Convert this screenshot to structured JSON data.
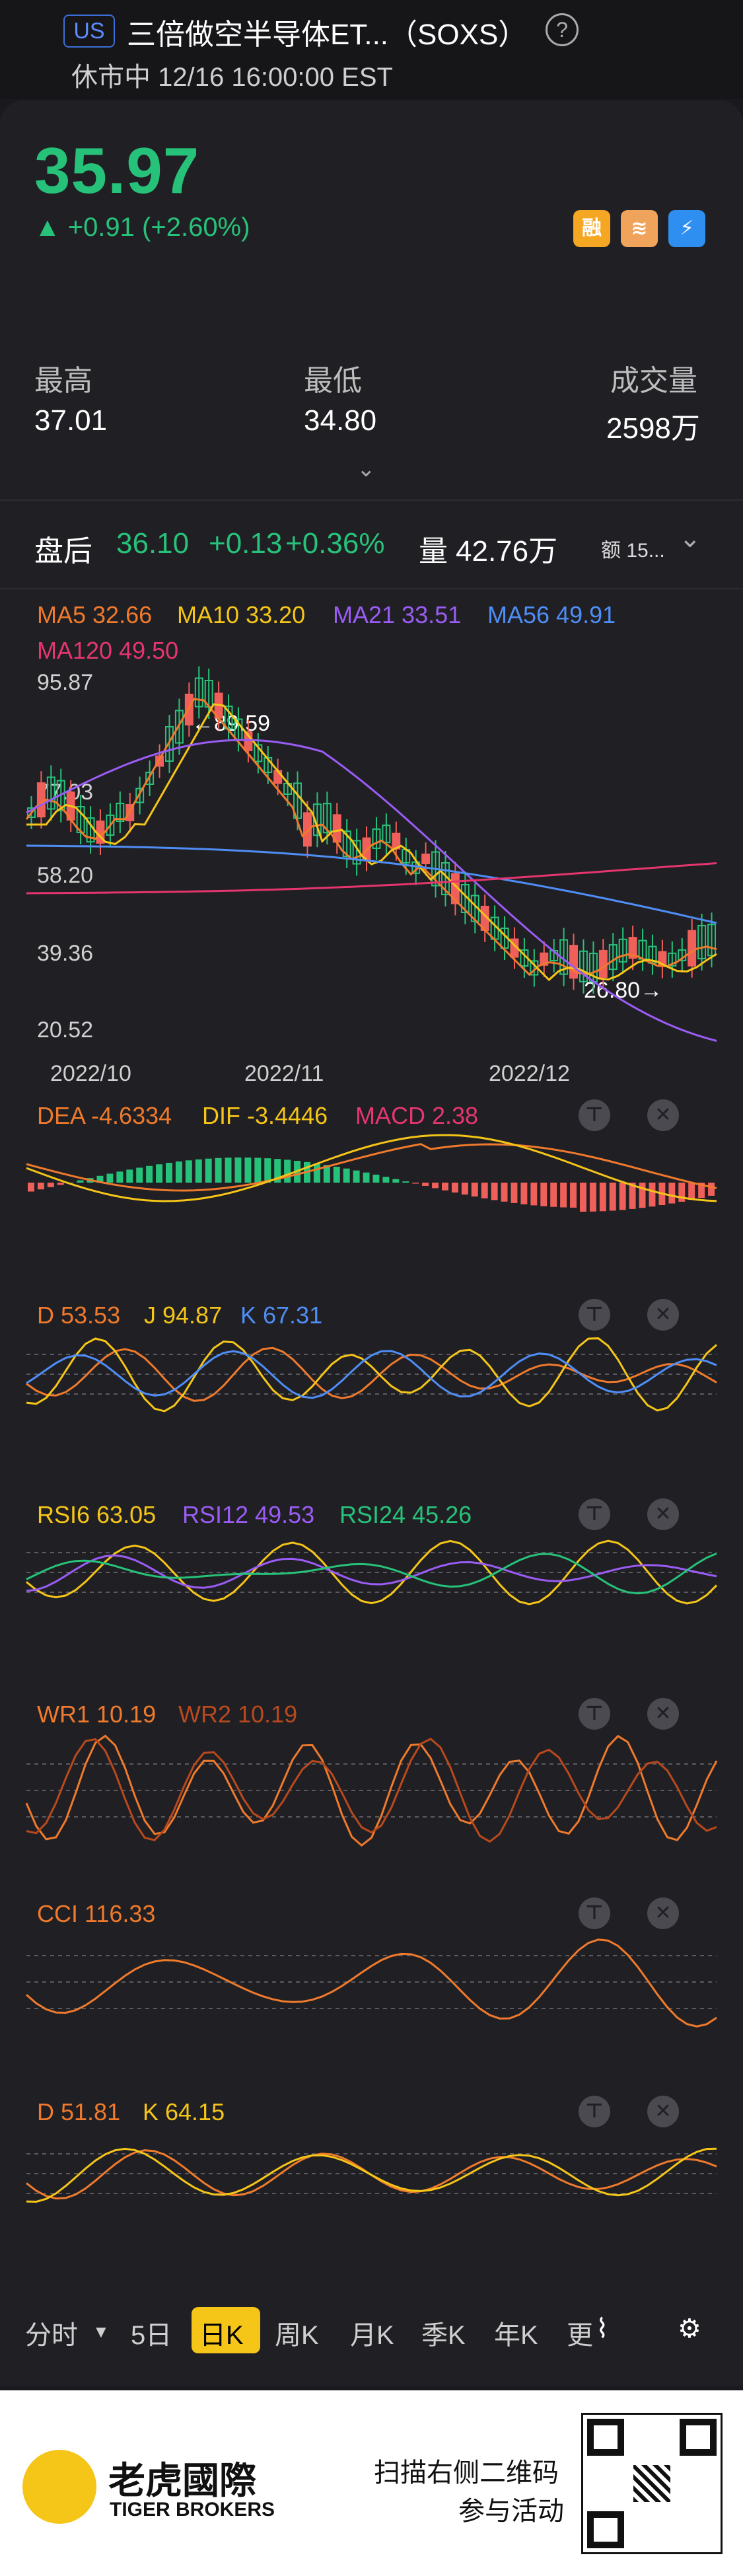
{
  "header": {
    "market": "US",
    "title": "三倍做空半导体ET...（SOXS）",
    "help": "?",
    "status": "休市中 12/16 16:00:00 EST"
  },
  "quote": {
    "price": "35.97",
    "change": "+0.91 (+2.60%)",
    "badges": [
      "融",
      "",
      "⚡"
    ]
  },
  "stats": {
    "high_label": "最高",
    "high": "37.01",
    "low_label": "最低",
    "low": "34.80",
    "vol_label": "成交量",
    "vol": "2598万"
  },
  "after_hours": {
    "label": "盘后",
    "price": "36.10",
    "change": "+0.13",
    "pct": "+0.36%",
    "vol_label": "量",
    "vol": "42.76万",
    "amt_label": "额",
    "amt": "15..."
  },
  "ma": {
    "ma5": "MA5 32.66",
    "ma10": "MA10 33.20",
    "ma21": "MA21 33.51",
    "ma56": "MA56 49.91",
    "ma120": "MA120 49.50"
  },
  "axis": {
    "y": [
      "95.87",
      "77.03",
      "58.20",
      "39.36",
      "20.52"
    ],
    "x": [
      "2022/10",
      "2022/11",
      "2022/12"
    ],
    "high_mark": "89.59",
    "low_mark": "26.80"
  },
  "macd": {
    "dea": "DEA -4.6334",
    "dif": "DIF -3.4446",
    "macd": "MACD 2.38"
  },
  "kdj": {
    "d": "D 53.53",
    "j": "J 94.87",
    "k": "K 67.31"
  },
  "rsi": {
    "r6": "RSI6 63.05",
    "r12": "RSI12 49.53",
    "r24": "RSI24 45.26"
  },
  "wr": {
    "w1": "WR1 10.19",
    "w2": "WR2 10.19"
  },
  "cci": {
    "c": "CCI 116.33"
  },
  "stoch": {
    "d": "D 51.81",
    "k": "K 64.15"
  },
  "tabs": [
    "分时",
    "5日",
    "日K",
    "周K",
    "月K",
    "季K",
    "年K",
    "更"
  ],
  "footer": {
    "brand_cn": "老虎國際",
    "brand_en": "TIGER BROKERS",
    "promo1": "扫描右侧二维码",
    "promo2": "参与活动"
  },
  "colors": {
    "up": "#27c27a",
    "down": "#f0605a",
    "ma5": "#f07a2c",
    "ma10": "#f5c518",
    "ma21": "#9b5cf5",
    "ma56": "#4f8ef7",
    "ma120": "#e6356f"
  }
}
